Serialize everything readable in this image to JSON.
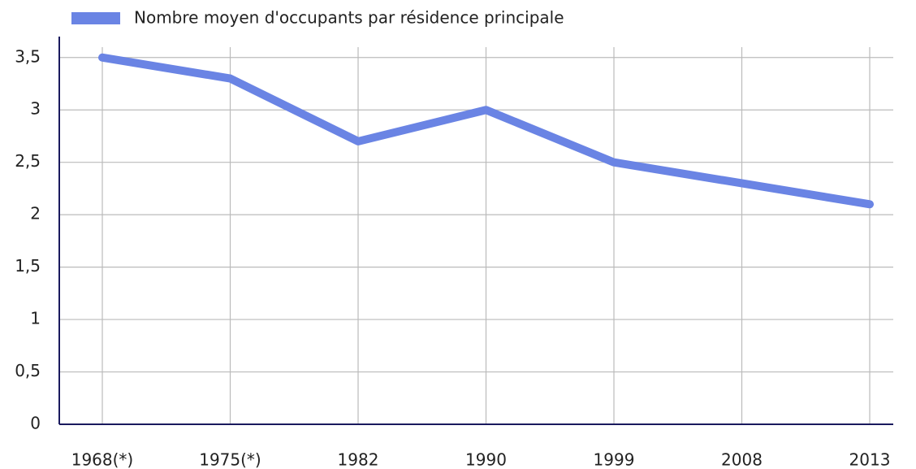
{
  "chart_data": {
    "type": "line",
    "categories": [
      "1968(*)",
      "1975(*)",
      "1982",
      "1990",
      "1999",
      "2008",
      "2013"
    ],
    "series": [
      {
        "name": "Nombre moyen d'occupants par résidence principale",
        "color": "#6a84e4",
        "values": [
          3.5,
          3.3,
          2.7,
          3.0,
          2.5,
          2.3,
          2.1
        ]
      }
    ],
    "ylim": [
      0,
      3.7
    ],
    "yticks": [
      0,
      {
        "value": 0.5,
        "label": "0,5"
      },
      1,
      {
        "value": 1.5,
        "label": "1,5"
      },
      2,
      {
        "value": 2.5,
        "label": "2,5"
      },
      3,
      {
        "value": 3.5,
        "label": "3,5"
      }
    ],
    "grid": true
  }
}
